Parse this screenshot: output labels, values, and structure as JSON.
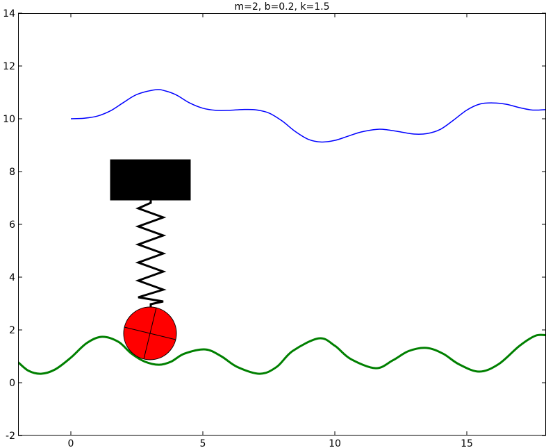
{
  "chart_data": {
    "type": "line",
    "title": "m=2, b=0.2, k=1.5",
    "xlim": [
      -2,
      18
    ],
    "ylim": [
      -2,
      14
    ],
    "xticks": [
      0,
      5,
      10,
      15
    ],
    "yticks": [
      -2,
      0,
      2,
      4,
      6,
      8,
      10,
      12,
      14
    ],
    "series": [
      {
        "color": "#0000ff",
        "width": 1.5,
        "x": [
          0,
          0.5,
          1,
          1.5,
          2,
          2.5,
          3.2,
          3.6,
          4,
          4.5,
          5,
          5.5,
          6,
          6.5,
          7,
          7.5,
          8,
          8.5,
          9,
          9.5,
          10,
          10.5,
          11,
          11.6,
          12,
          12.5,
          13,
          13.5,
          14,
          14.5,
          15,
          15.5,
          16,
          16.5,
          17,
          17.5,
          18
        ],
        "values": [
          10.0,
          10.02,
          10.1,
          10.3,
          10.62,
          10.92,
          11.1,
          11.05,
          10.9,
          10.6,
          10.4,
          10.32,
          10.32,
          10.35,
          10.34,
          10.22,
          9.92,
          9.52,
          9.22,
          9.12,
          9.18,
          9.34,
          9.5,
          9.6,
          9.58,
          9.5,
          9.42,
          9.44,
          9.6,
          9.95,
          10.33,
          10.56,
          10.6,
          10.55,
          10.42,
          10.33,
          10.35
        ]
      },
      {
        "color": "#008000",
        "width": 3,
        "x": [
          -2,
          -1.6,
          -1.13,
          -0.6,
          0,
          0.6,
          1.18,
          1.8,
          2.3,
          2.8,
          3.34,
          3.8,
          4.3,
          5.1,
          5.7,
          6.3,
          7.16,
          7.8,
          8.4,
          9.4,
          10.0,
          10.6,
          11.55,
          12.2,
          12.8,
          13.47,
          14.1,
          14.7,
          15.47,
          16.2,
          17.0,
          17.6,
          18
        ],
        "values": [
          0.78,
          0.45,
          0.34,
          0.5,
          0.95,
          1.5,
          1.74,
          1.55,
          1.1,
          0.8,
          0.68,
          0.8,
          1.1,
          1.26,
          1.0,
          0.6,
          0.34,
          0.6,
          1.2,
          1.68,
          1.4,
          0.9,
          0.55,
          0.85,
          1.2,
          1.32,
          1.1,
          0.7,
          0.42,
          0.7,
          1.4,
          1.78,
          1.8
        ]
      }
    ]
  }
}
